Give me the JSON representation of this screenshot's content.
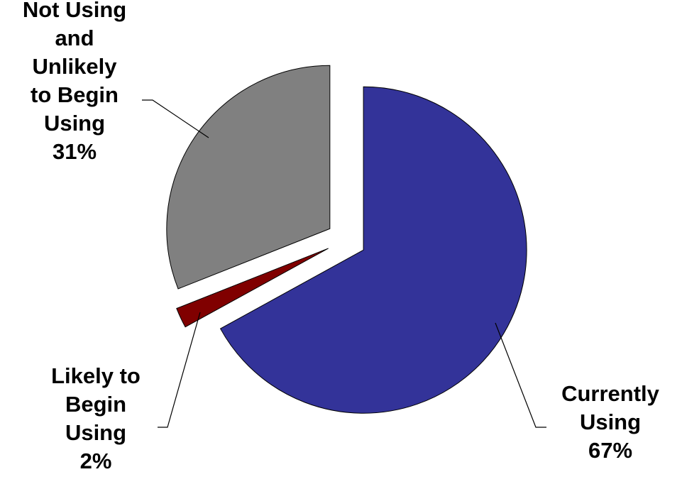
{
  "chart_data": {
    "type": "pie",
    "title": "",
    "slices": [
      {
        "name": "Currently Using",
        "label_lines": [
          "Currently",
          "Using"
        ],
        "value": 67,
        "value_label": "67%",
        "color": "#333399"
      },
      {
        "name": "Likely to Begin Using",
        "label_lines": [
          "Likely to",
          "Begin",
          "Using"
        ],
        "value": 2,
        "value_label": "2%",
        "color": "#800000"
      },
      {
        "name": "Not Using and Unlikely to Begin Using",
        "label_lines": [
          "Not Using",
          "and",
          "Unlikely",
          "to Begin",
          "Using"
        ],
        "value": 31,
        "value_label": "31%",
        "color": "#808080"
      }
    ],
    "exploded": true,
    "legend": "none",
    "start_angle": "12 o'clock, clockwise"
  }
}
